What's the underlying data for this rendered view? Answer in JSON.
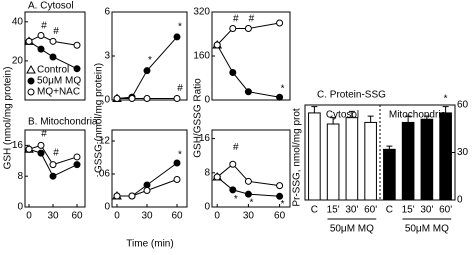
{
  "figure": {
    "label_a": "A. Cytosol",
    "label_b": "B. Mitochondria",
    "xlabel": "Time (min)",
    "ylabel_gsh": "GSH (nmol/mg protein)",
    "ylabel_gssg": "GSSG (nmol/mg protein)",
    "ylabel_ratio": "GSH/GSSG Ratio"
  },
  "chart_data": [
    {
      "type": "line",
      "x": [
        0,
        15,
        30,
        60
      ],
      "xlim": [
        -5,
        70
      ],
      "ylim": [
        0,
        45
      ],
      "yticks": [
        20,
        40
      ],
      "legend": true,
      "series": [
        {
          "name": "Control",
          "marker": "triangle",
          "line": false,
          "values": [
            30,
            null,
            null,
            null
          ]
        },
        {
          "name": "50μM MQ",
          "marker": "filled",
          "line": true,
          "values": [
            30,
            26,
            22,
            16
          ]
        },
        {
          "name": "MQ+NAC",
          "marker": "open",
          "line": true,
          "values": [
            30,
            33,
            30,
            28
          ]
        }
      ],
      "annotations": [
        {
          "text": "#",
          "x": 15,
          "y": 38
        },
        {
          "text": "#",
          "x": 30,
          "y": 35
        }
      ]
    },
    {
      "type": "line",
      "x": [
        0,
        15,
        30,
        60
      ],
      "xlim": [
        -5,
        70
      ],
      "ylim": [
        0,
        6
      ],
      "yticks": [
        0,
        3,
        6
      ],
      "series": [
        {
          "marker": "triangle",
          "line": false,
          "values": [
            0.1,
            null,
            null,
            null
          ]
        },
        {
          "marker": "filled",
          "line": true,
          "values": [
            0.1,
            0.2,
            2.0,
            4.3
          ]
        },
        {
          "marker": "open",
          "line": true,
          "values": [
            0.1,
            0.1,
            0.1,
            0.1
          ]
        }
      ],
      "annotations": [
        {
          "text": "*",
          "x": 30,
          "y": 2.7
        },
        {
          "text": "*",
          "x": 60,
          "y": 5.0
        },
        {
          "text": "#",
          "x": 60,
          "y": 0.8
        }
      ]
    },
    {
      "type": "line",
      "x": [
        0,
        15,
        30,
        60
      ],
      "xlim": [
        -5,
        70
      ],
      "ylim": [
        0,
        320
      ],
      "yticks": [
        0,
        160,
        320
      ],
      "series": [
        {
          "marker": "triangle",
          "line": false,
          "values": [
            200,
            null,
            null,
            null
          ]
        },
        {
          "marker": "filled",
          "line": true,
          "values": [
            200,
            100,
            30,
            10
          ]
        },
        {
          "marker": "open",
          "line": true,
          "values": [
            200,
            260,
            260,
            280
          ]
        }
      ],
      "annotations": [
        {
          "text": "#",
          "x": 15,
          "y": 295
        },
        {
          "text": "#",
          "x": 30,
          "y": 295
        },
        {
          "text": "*",
          "x": 60,
          "y": 40
        }
      ]
    },
    {
      "type": "line",
      "x": [
        0,
        15,
        30,
        60
      ],
      "xlim": [
        -5,
        70
      ],
      "ylim": [
        0,
        20
      ],
      "yticks": [
        0,
        8,
        16
      ],
      "xticks": [
        0,
        30,
        60
      ],
      "series": [
        {
          "marker": "triangle",
          "line": false,
          "values": [
            15,
            null,
            null,
            null
          ]
        },
        {
          "marker": "filled",
          "line": true,
          "values": [
            15,
            14,
            8,
            11
          ]
        },
        {
          "marker": "open",
          "line": true,
          "values": [
            15,
            16,
            11,
            13
          ]
        }
      ],
      "annotations": [
        {
          "text": "#",
          "x": 15,
          "y": 19
        },
        {
          "text": "#",
          "x": 30,
          "y": 14
        }
      ]
    },
    {
      "type": "line",
      "x": [
        0,
        15,
        30,
        60
      ],
      "xlim": [
        -5,
        70
      ],
      "ylim": [
        0,
        0.14
      ],
      "yticks": [
        0,
        {
          "value": 0.06,
          "label": ".06"
        },
        {
          "value": 0.12,
          "label": ".12"
        }
      ],
      "xticks": [
        0,
        30,
        60
      ],
      "series": [
        {
          "marker": "triangle",
          "line": false,
          "values": [
            0.02,
            null,
            null,
            null
          ]
        },
        {
          "marker": "filled",
          "line": true,
          "values": [
            0.02,
            0.02,
            0.04,
            0.08
          ]
        },
        {
          "marker": "open",
          "line": true,
          "values": [
            0.02,
            0.02,
            0.03,
            0.05
          ]
        }
      ],
      "annotations": [
        {
          "text": "*",
          "x": 60,
          "y": 0.095
        }
      ]
    },
    {
      "type": "line",
      "x": [
        0,
        15,
        30,
        60
      ],
      "xlim": [
        -5,
        70
      ],
      "ylim": [
        0,
        18
      ],
      "yticks": [
        0,
        8,
        16
      ],
      "xticks": [
        0,
        30,
        60
      ],
      "series": [
        {
          "marker": "triangle",
          "line": false,
          "values": [
            7,
            null,
            null,
            null
          ]
        },
        {
          "marker": "filled",
          "line": true,
          "values": [
            7,
            4,
            3,
            2.5
          ]
        },
        {
          "marker": "open",
          "line": true,
          "values": [
            7,
            10,
            6,
            5
          ]
        }
      ],
      "annotations": [
        {
          "text": "#",
          "x": 15,
          "y": 14
        },
        {
          "text": "*",
          "x": 15,
          "y": 1.8
        },
        {
          "text": "*",
          "x": 30,
          "y": 1
        },
        {
          "text": "*",
          "x": 60,
          "y": 0.6
        }
      ]
    },
    {
      "type": "bar",
      "title": "C. Protein-SSG",
      "ylabel": "Pr-SSG, nmol/mg prot",
      "categories": [
        "C",
        "15'",
        "30'",
        "60'",
        "C",
        "15'",
        "30'",
        "60'"
      ],
      "groups": [
        "Cytosol",
        "Mitochondria"
      ],
      "group_labels": [
        "50μM MQ",
        "50μM MQ"
      ],
      "ylim": [
        0,
        6
      ],
      "y2lim": [
        0,
        60
      ],
      "y2ticks": [
        0,
        30,
        60
      ],
      "series": [
        {
          "color": "#ffffff",
          "values": [
            5.5,
            4.8,
            5.2,
            4.9,
            null,
            null,
            null,
            null
          ],
          "errors": [
            0.4,
            0.4,
            0.4,
            0.4,
            null,
            null,
            null,
            null
          ]
        },
        {
          "color": "#000000",
          "axis": "y2",
          "values": [
            null,
            null,
            null,
            null,
            32,
            49,
            51,
            55
          ],
          "errors": [
            null,
            null,
            null,
            null,
            2,
            4,
            2,
            4
          ]
        }
      ],
      "annotations": [
        {
          "text": "*",
          "x": "60'",
          "y": 64
        }
      ]
    }
  ]
}
